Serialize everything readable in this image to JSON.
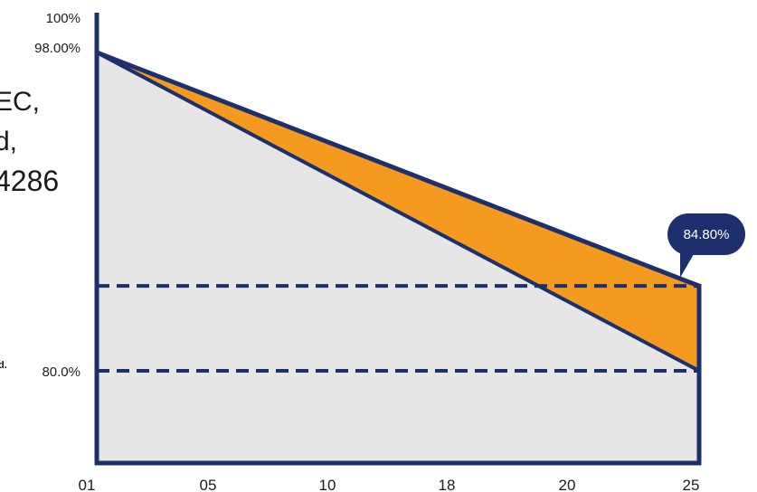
{
  "side_text": {
    "line1": "EC,",
    "line2": "d,",
    "line3": "4286",
    "line4": "d."
  },
  "chart_data": {
    "type": "area",
    "x": [
      "01",
      "05",
      "10",
      "18",
      "20",
      "25"
    ],
    "x_range": [
      1,
      25
    ],
    "ylim": [
      60,
      100
    ],
    "y_tick_labels": [
      {
        "value": 100,
        "label": "100%"
      },
      {
        "value": 98,
        "label": "98.00%"
      },
      {
        "value": 80,
        "label": "80.0%"
      }
    ],
    "series": [
      {
        "values_at_ends": [
          98.0,
          84.8
        ],
        "color": "#1e2f6e"
      },
      {
        "values_at_ends": [
          98.0,
          80.0
        ],
        "color": "#1e2f6e"
      }
    ],
    "reference_lines": [
      84.8,
      80.0
    ],
    "callout": {
      "label": "84.80%",
      "value": 84.8
    },
    "colors": {
      "axis": "#1e2f6e",
      "area_fill": "#e6e6e6",
      "gap_fill": "#f39a1f",
      "callout_bg": "#1e2f6e"
    }
  }
}
